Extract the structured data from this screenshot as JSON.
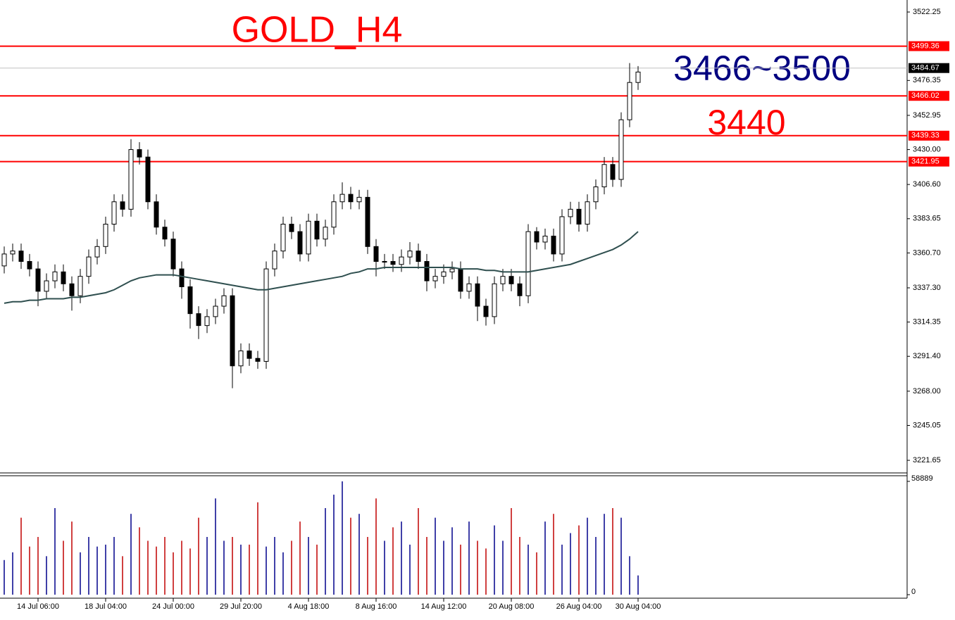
{
  "chart_data": {
    "type": "candlestick",
    "title": "GOLD_H4",
    "annotations": [
      "3466~3500",
      "3440"
    ],
    "categories": [
      null,
      null,
      null,
      null,
      "14 Jul 06:00",
      null,
      null,
      null,
      null,
      null,
      null,
      null,
      "18 Jul 04:00",
      null,
      null,
      null,
      null,
      null,
      null,
      null,
      "24 Jul 00:00",
      null,
      null,
      null,
      null,
      null,
      null,
      null,
      "29 Jul 20:00",
      null,
      null,
      null,
      null,
      null,
      null,
      null,
      "4 Aug 18:00",
      null,
      null,
      null,
      null,
      null,
      null,
      null,
      "8 Aug 16:00",
      null,
      null,
      null,
      null,
      null,
      null,
      null,
      "14 Aug 12:00",
      null,
      null,
      null,
      null,
      null,
      null,
      null,
      "20 Aug 08:00",
      null,
      null,
      null,
      null,
      null,
      null,
      null,
      "26 Aug 04:00",
      null,
      null,
      null,
      null,
      null,
      null,
      "30 Aug 04:00"
    ],
    "open": [
      3352,
      3360,
      3362,
      3355,
      3350,
      3335,
      3342,
      3348,
      3340,
      3332,
      3345,
      3358,
      3365,
      3380,
      3395,
      3390,
      3430,
      3425,
      3395,
      3378,
      3370,
      3350,
      3338,
      3320,
      3312,
      3318,
      3325,
      3332,
      3285,
      3295,
      3290,
      3288,
      3350,
      3362,
      3380,
      3375,
      3360,
      3382,
      3370,
      3378,
      3395,
      3400,
      3395,
      3398,
      3365,
      3355,
      3355,
      3353,
      3358,
      3362,
      3355,
      3342,
      3345,
      3348,
      3350,
      3335,
      3340,
      3325,
      3318,
      3340,
      3345,
      3340,
      3332,
      3375,
      3368,
      3372,
      3360,
      3385,
      3390,
      3380,
      3395,
      3405,
      3420,
      3410,
      3450,
      3475
    ],
    "high": [
      3365,
      3367,
      3367,
      3360,
      3355,
      3347,
      3353,
      3353,
      3345,
      3350,
      3363,
      3370,
      3385,
      3400,
      3400,
      3437,
      3435,
      3430,
      3400,
      3383,
      3375,
      3355,
      3343,
      3325,
      3323,
      3330,
      3337,
      3337,
      3300,
      3300,
      3295,
      3355,
      3367,
      3385,
      3385,
      3380,
      3387,
      3387,
      3383,
      3400,
      3408,
      3405,
      3403,
      3403,
      3370,
      3360,
      3360,
      3363,
      3368,
      3367,
      3360,
      3350,
      3353,
      3355,
      3355,
      3345,
      3345,
      3330,
      3345,
      3350,
      3350,
      3345,
      3380,
      3378,
      3377,
      3377,
      3390,
      3395,
      3395,
      3400,
      3410,
      3425,
      3425,
      3455,
      3488,
      3486
    ],
    "low": [
      3347,
      3355,
      3350,
      3345,
      3325,
      3330,
      3337,
      3335,
      3322,
      3327,
      3340,
      3353,
      3360,
      3375,
      3385,
      3385,
      3420,
      3390,
      3373,
      3365,
      3345,
      3330,
      3310,
      3303,
      3307,
      3313,
      3320,
      3270,
      3280,
      3285,
      3283,
      3283,
      3345,
      3357,
      3370,
      3355,
      3355,
      3365,
      3365,
      3373,
      3390,
      3390,
      3390,
      3360,
      3345,
      3350,
      3348,
      3348,
      3353,
      3350,
      3335,
      3337,
      3340,
      3343,
      3330,
      3330,
      3315,
      3312,
      3313,
      3335,
      3335,
      3325,
      3327,
      3363,
      3363,
      3355,
      3355,
      3380,
      3375,
      3375,
      3390,
      3400,
      3405,
      3405,
      3445,
      3470
    ],
    "close": [
      3360,
      3362,
      3355,
      3350,
      3335,
      3342,
      3348,
      3340,
      3332,
      3345,
      3358,
      3365,
      3380,
      3395,
      3390,
      3430,
      3425,
      3395,
      3378,
      3370,
      3350,
      3338,
      3320,
      3312,
      3318,
      3325,
      3332,
      3285,
      3295,
      3290,
      3288,
      3350,
      3362,
      3380,
      3375,
      3360,
      3382,
      3370,
      3378,
      3395,
      3400,
      3395,
      3398,
      3365,
      3355,
      3355,
      3353,
      3358,
      3362,
      3355,
      3342,
      3345,
      3348,
      3350,
      3335,
      3340,
      3325,
      3318,
      3340,
      3345,
      3340,
      3332,
      3375,
      3368,
      3372,
      3360,
      3385,
      3390,
      3380,
      3395,
      3405,
      3420,
      3410,
      3450,
      3475,
      3482
    ],
    "ma": {
      "color": "#2f4f4f",
      "values": [
        3327,
        3328,
        3328,
        3329,
        3329,
        3330,
        3330,
        3330,
        3331,
        3331,
        3332,
        3333,
        3334,
        3336,
        3339,
        3342,
        3344,
        3345,
        3346,
        3346,
        3346,
        3345,
        3344,
        3343,
        3342,
        3341,
        3340,
        3339,
        3338,
        3337,
        3336,
        3336,
        3337,
        3338,
        3339,
        3340,
        3341,
        3342,
        3343,
        3344,
        3345,
        3347,
        3348,
        3350,
        3350,
        3351,
        3351,
        3351,
        3351,
        3351,
        3351,
        3351,
        3351,
        3351,
        3350,
        3350,
        3350,
        3349,
        3349,
        3348,
        3348,
        3348,
        3348,
        3349,
        3350,
        3351,
        3352,
        3353,
        3355,
        3357,
        3359,
        3361,
        3363,
        3366,
        3370,
        3375
      ]
    },
    "ylim": [
      3213.2,
      3530.3
    ],
    "yticks": [
      3522.25,
      3476.35,
      3452.95,
      {
        "value": 3430,
        "label": "3430.00"
      },
      {
        "value": 3406.6,
        "label": "3406.60"
      },
      3383.65,
      {
        "value": 3360.7,
        "label": "3360.70"
      },
      {
        "value": 3337.3,
        "label": "3337.30"
      },
      3314.35,
      {
        "value": 3291.4,
        "label": "3291.40"
      },
      {
        "value": 3268,
        "label": "3268.00"
      },
      3245.05,
      3221.65
    ],
    "levels": [
      3499.36,
      3466.02,
      3439.33,
      3421.95
    ],
    "level_color": "#ff0000",
    "current_price": 3484.67,
    "volume": {
      "ylim": [
        0,
        58889
      ],
      "yticks": [
        58889,
        0
      ],
      "up_color": "#00008b",
      "down_color": "#c00000",
      "values": [
        18000,
        22000,
        40000,
        25000,
        30000,
        20000,
        45000,
        28000,
        38000,
        22000,
        30000,
        25000,
        26000,
        30000,
        20000,
        42000,
        35000,
        28000,
        25000,
        30000,
        22000,
        28000,
        24000,
        40000,
        30000,
        50000,
        28000,
        30000,
        26000,
        26000,
        48000,
        25000,
        30000,
        22000,
        28000,
        38000,
        30000,
        26000,
        45000,
        52000,
        58889,
        40000,
        42000,
        30000,
        50000,
        28000,
        35000,
        38000,
        26000,
        45000,
        30000,
        40000,
        28000,
        35000,
        26000,
        38000,
        28000,
        24000,
        36000,
        28000,
        45000,
        30000,
        26000,
        22000,
        38000,
        42000,
        26000,
        32000,
        36000,
        40000,
        30000,
        42000,
        45000,
        40000,
        20000,
        10000
      ]
    }
  }
}
